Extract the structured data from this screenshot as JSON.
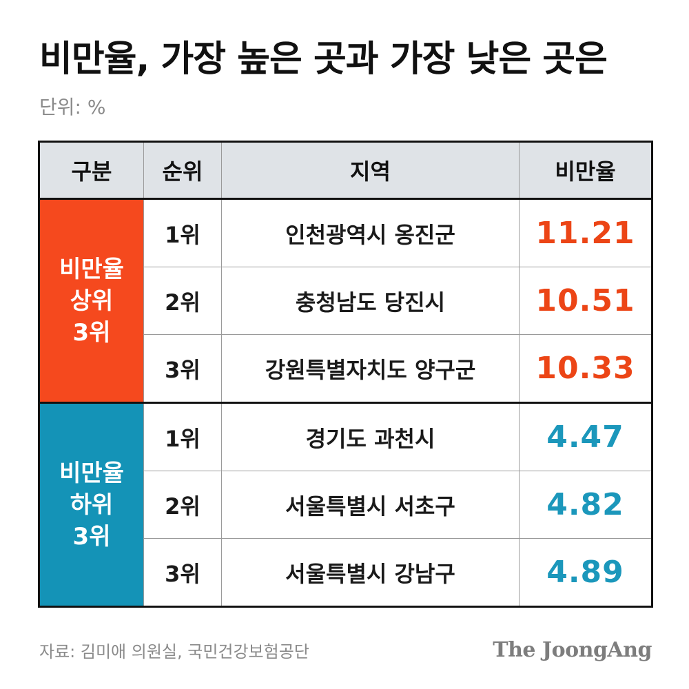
{
  "title": "비만율, 가장 높은 곳과 가장 낮은 곳은",
  "unit": "단위: %",
  "headers": [
    "구분",
    "순위",
    "지역",
    "비만율"
  ],
  "groups": [
    {
      "label_lines": [
        "비만율",
        "상위",
        "3위"
      ],
      "color": "#f5491e",
      "value_color": "#ec4516",
      "rows": [
        {
          "rank": "1위",
          "region": "인천광역시 옹진군",
          "value": "11.21"
        },
        {
          "rank": "2위",
          "region": "충청남도 당진시",
          "value": "10.51"
        },
        {
          "rank": "3위",
          "region": "강원특별자치도 양구군",
          "value": "10.33"
        }
      ]
    },
    {
      "label_lines": [
        "비만율",
        "하위",
        "3위"
      ],
      "color": "#1493b7",
      "value_color": "#1b97bb",
      "rows": [
        {
          "rank": "1위",
          "region": "경기도 과천시",
          "value": "4.47"
        },
        {
          "rank": "2위",
          "region": "서울특별시 서초구",
          "value": "4.82"
        },
        {
          "rank": "3위",
          "region": "서울특별시 강남구",
          "value": "4.89"
        }
      ]
    }
  ],
  "source": "자료: 김미애 의원실, 국민건강보험공단",
  "logo": "The JoongAng"
}
